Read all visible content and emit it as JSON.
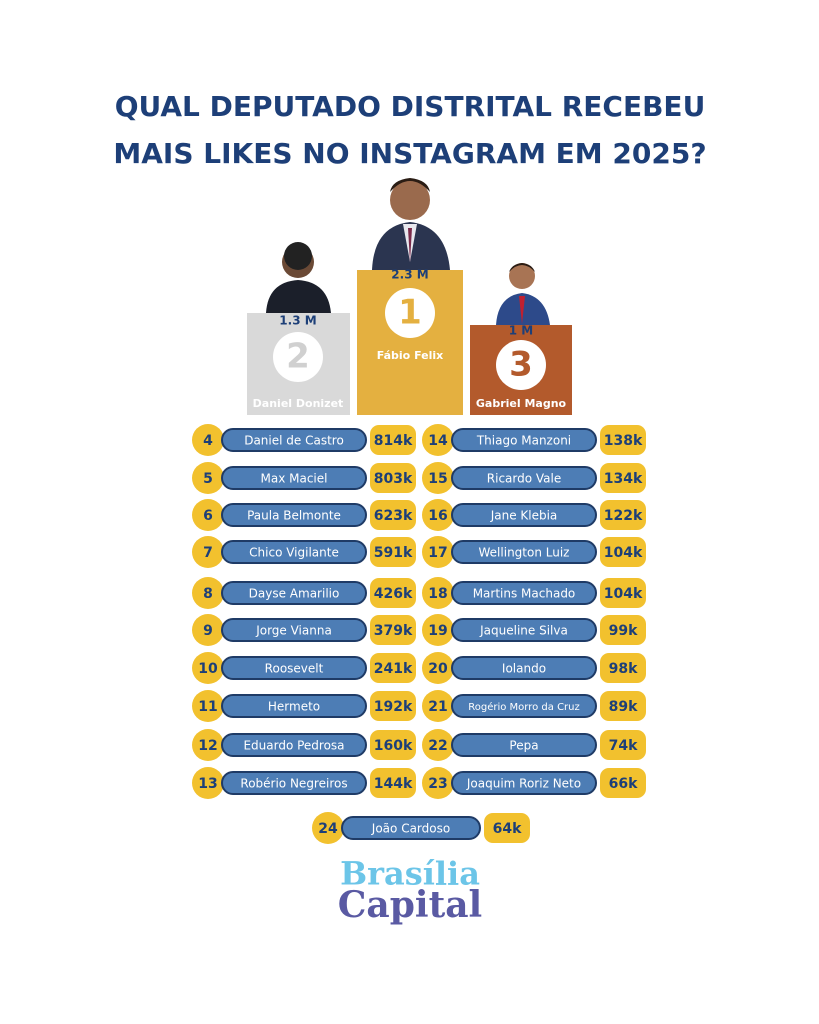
{
  "title": [
    "QUAL DEPUTADO DISTRITAL RECEBEU",
    "MAIS LIKES NO INSTAGRAM EM 2025?"
  ],
  "podium": [
    {
      "rank": 1,
      "name": "Fábio Felix",
      "likes": "2.3 M"
    },
    {
      "rank": 2,
      "name": "Daniel Donizet",
      "likes": "1.3 M"
    },
    {
      "rank": 3,
      "name": "Gabriel Magno",
      "likes": "1 M"
    }
  ],
  "ranking": [
    {
      "rank": 4,
      "name": "Daniel de Castro",
      "likes": "814k"
    },
    {
      "rank": 5,
      "name": "Max Maciel",
      "likes": "803k"
    },
    {
      "rank": 6,
      "name": "Paula Belmonte",
      "likes": "623k"
    },
    {
      "rank": 7,
      "name": "Chico Vigilante",
      "likes": "591k"
    },
    {
      "rank": 8,
      "name": "Dayse Amarilio",
      "likes": "426k"
    },
    {
      "rank": 9,
      "name": "Jorge Vianna",
      "likes": "379k"
    },
    {
      "rank": 10,
      "name": "Roosevelt",
      "likes": "241k"
    },
    {
      "rank": 11,
      "name": "Hermeto",
      "likes": "192k"
    },
    {
      "rank": 12,
      "name": "Eduardo Pedrosa",
      "likes": "160k"
    },
    {
      "rank": 13,
      "name": "Robério Negreiros",
      "likes": "144k"
    },
    {
      "rank": 14,
      "name": "Thiago Manzoni",
      "likes": "138k"
    },
    {
      "rank": 15,
      "name": "Ricardo Vale",
      "likes": "134k"
    },
    {
      "rank": 16,
      "name": "Jane Klebia",
      "likes": "122k"
    },
    {
      "rank": 17,
      "name": "Wellington Luiz",
      "likes": "104k"
    },
    {
      "rank": 18,
      "name": "Martins Machado",
      "likes": "104k"
    },
    {
      "rank": 19,
      "name": "Jaqueline Silva",
      "likes": "99k"
    },
    {
      "rank": 20,
      "name": "Iolando",
      "likes": "98k"
    },
    {
      "rank": 21,
      "name": "Rogério Morro da Cruz",
      "likes": "89k"
    },
    {
      "rank": 22,
      "name": "Pepa",
      "likes": "74k"
    },
    {
      "rank": 23,
      "name": "Joaquim Roriz Neto",
      "likes": "66k"
    },
    {
      "rank": 24,
      "name": "João Cardoso",
      "likes": "64k"
    }
  ],
  "logo": [
    "Brasília",
    "Capital"
  ]
}
